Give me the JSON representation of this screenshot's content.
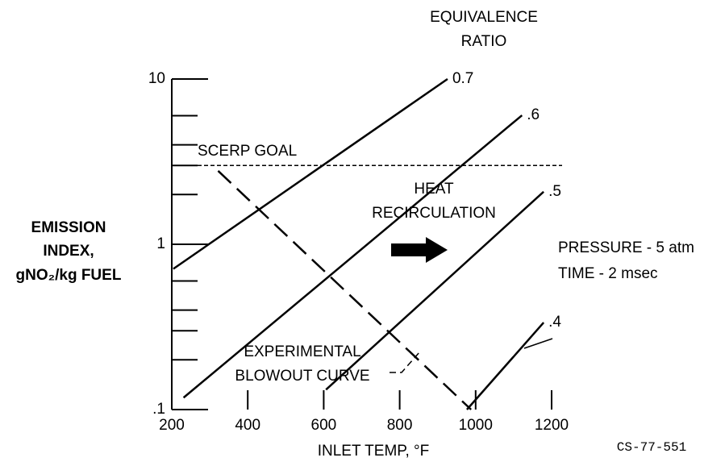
{
  "chart_data": {
    "type": "line",
    "legend_title": [
      "EQUIVALENCE",
      "RATIO"
    ],
    "ylabel": [
      "EMISSION",
      "INDEX,",
      "gNO₂/kg FUEL"
    ],
    "xlabel": "INLET TEMP, °F",
    "ylog": true,
    "xlim": [
      200,
      1200
    ],
    "xticks": [
      200,
      400,
      600,
      800,
      1000,
      1200
    ],
    "ylim": [
      0.1,
      10
    ],
    "yticks": [
      {
        "value": 0.1,
        "label": ".1"
      },
      1,
      10
    ],
    "yminorticks": [
      0.2,
      0.3,
      0.4,
      0.6,
      2,
      3,
      4,
      6
    ],
    "color": "#000000",
    "series": [
      {
        "name": "0.7",
        "x": [
          204,
          926
        ],
        "values": [
          0.71,
          10
        ]
      },
      {
        "name": ".6",
        "x": [
          231,
          1122
        ],
        "values": [
          0.118,
          6.03
        ]
      },
      {
        "name": ".5",
        "x": [
          606,
          1179
        ],
        "values": [
          0.132,
          2.08
        ]
      },
      {
        "name": ".4",
        "x": [
          977,
          1179
        ],
        "values": [
          0.1,
          0.336
        ]
      }
    ],
    "goal": {
      "label": "SCERP GOAL",
      "value": 3
    },
    "blowout": {
      "label": [
        "EXPERIMENTAL",
        "BLOWOUT CURVE"
      ],
      "x": [
        322,
        988
      ],
      "values": [
        2.78,
        0.1
      ]
    },
    "annotations": [
      "HEAT",
      "RECIRCULATION",
      "PRESSURE - 5 atm",
      "TIME - 2 msec"
    ],
    "footnote": "CS-77-551"
  }
}
